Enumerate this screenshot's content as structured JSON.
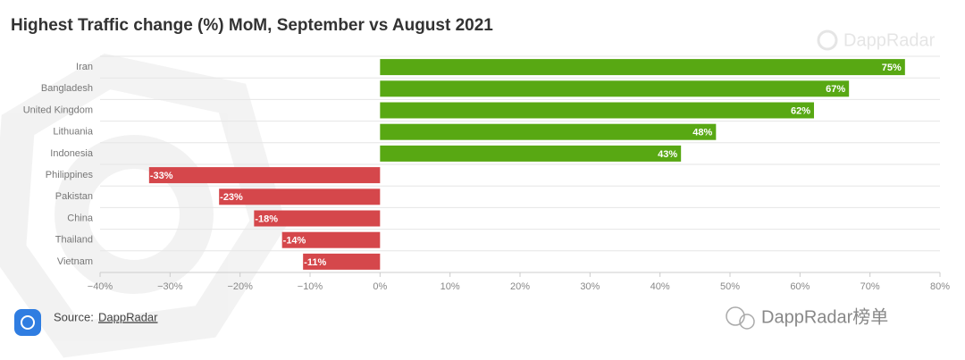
{
  "chart_data": {
    "type": "hbar",
    "title": "Highest Traffic change (%) MoM, September vs August 2021",
    "brand": "DappRadar",
    "source_label": "Source:",
    "source": "DappRadar",
    "footer_mark": "DappRadar榜单",
    "categories": [
      "Iran",
      "Bangladesh",
      "United Kingdom",
      "Lithuania",
      "Indonesia",
      "Philippines",
      "Pakistan",
      "China",
      "Thailand",
      "Vietnam"
    ],
    "values": [
      75,
      67,
      62,
      48,
      43,
      -33,
      -23,
      -18,
      -14,
      -11
    ],
    "value_labels": [
      "75%",
      "67%",
      "62%",
      "48%",
      "43%",
      "-33%",
      "-23%",
      "-18%",
      "-14%",
      "-11%"
    ],
    "positive_color": "#58a813",
    "negative_color": "#d5474b",
    "xlim": [
      -40,
      80
    ],
    "xticks": [
      {
        "value": -40,
        "label": "−40%"
      },
      {
        "value": -30,
        "label": "−30%"
      },
      {
        "value": -20,
        "label": "−20%"
      },
      {
        "value": -10,
        "label": "−10%"
      },
      {
        "value": 0,
        "label": "0%"
      },
      {
        "value": 10,
        "label": "10%"
      },
      {
        "value": 20,
        "label": "20%"
      },
      {
        "value": 30,
        "label": "30%"
      },
      {
        "value": 40,
        "label": "40%"
      },
      {
        "value": 50,
        "label": "50%"
      },
      {
        "value": 60,
        "label": "60%"
      },
      {
        "value": 70,
        "label": "70%"
      },
      {
        "value": 80,
        "label": "80%"
      }
    ]
  }
}
